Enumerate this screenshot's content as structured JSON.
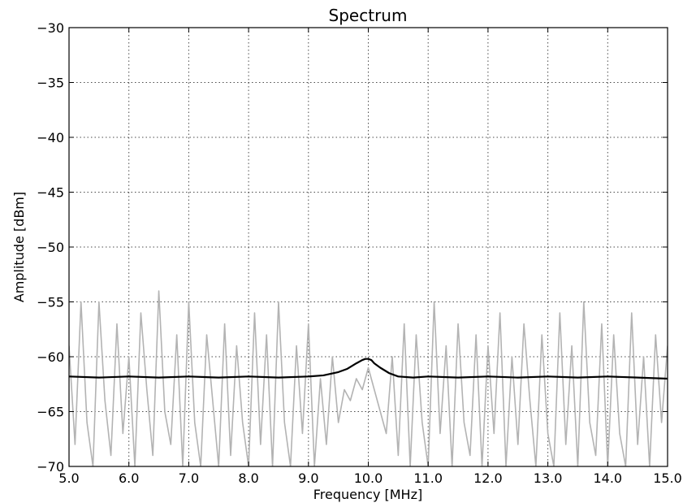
{
  "chart_data": {
    "type": "line",
    "title": "Spectrum",
    "xlabel": "Frequency [MHz]",
    "ylabel": "Amplitude [dBm]",
    "xlim": [
      5.0,
      15.0
    ],
    "ylim": [
      -70,
      -30
    ],
    "x_ticks": [
      5.0,
      6.0,
      7.0,
      8.0,
      9.0,
      10.0,
      11.0,
      12.0,
      13.0,
      14.0,
      15.0
    ],
    "x_tick_labels": [
      "5.0",
      "6.0",
      "7.0",
      "8.0",
      "9.0",
      "10.0",
      "11.0",
      "12.0",
      "13.0",
      "14.0",
      "15.0"
    ],
    "y_ticks": [
      -70,
      -65,
      -60,
      -55,
      -50,
      -45,
      -40,
      -35,
      -30
    ],
    "y_tick_labels": [
      "−70",
      "−65",
      "−60",
      "−55",
      "−50",
      "−45",
      "−40",
      "−35",
      "−30"
    ],
    "grid": true,
    "legend": "none",
    "series": [
      {
        "color": "#b3b3b3",
        "style": "instantaneous noisy spectrum trace",
        "x": [
          5.0,
          5.1,
          5.2,
          5.3,
          5.4,
          5.5,
          5.6,
          5.7,
          5.8,
          5.9,
          6.0,
          6.1,
          6.2,
          6.3,
          6.4,
          6.5,
          6.6,
          6.7,
          6.8,
          6.9,
          7.0,
          7.1,
          7.2,
          7.3,
          7.4,
          7.5,
          7.6,
          7.7,
          7.8,
          7.9,
          8.0,
          8.1,
          8.2,
          8.3,
          8.4,
          8.5,
          8.6,
          8.7,
          8.8,
          8.9,
          9.0,
          9.1,
          9.2,
          9.3,
          9.4,
          9.5,
          9.6,
          9.7,
          9.8,
          9.9,
          10.0,
          10.1,
          10.2,
          10.3,
          10.4,
          10.5,
          10.6,
          10.7,
          10.8,
          10.9,
          11.0,
          11.1,
          11.2,
          11.3,
          11.4,
          11.5,
          11.6,
          11.7,
          11.8,
          11.9,
          12.0,
          12.1,
          12.2,
          12.3,
          12.4,
          12.5,
          12.6,
          12.7,
          12.8,
          12.9,
          13.0,
          13.1,
          13.2,
          13.3,
          13.4,
          13.5,
          13.6,
          13.7,
          13.8,
          13.9,
          14.0,
          14.1,
          14.2,
          14.3,
          14.4,
          14.5,
          14.6,
          14.7,
          14.8,
          14.9,
          15.0
        ],
        "values": [
          -59,
          -68,
          -55,
          -66,
          -70,
          -55,
          -64,
          -69,
          -57,
          -67,
          -60,
          -70,
          -56,
          -63,
          -69,
          -54,
          -65,
          -68,
          -58,
          -70,
          -55,
          -66,
          -70,
          -58,
          -64,
          -70,
          -57,
          -69,
          -59,
          -66,
          -70,
          -56,
          -68,
          -58,
          -70,
          -55,
          -66,
          -70,
          -59,
          -67,
          -57,
          -70,
          -62,
          -68,
          -60,
          -66,
          -63,
          -64,
          -62,
          -63,
          -61,
          -63,
          -65,
          -67,
          -60,
          -69,
          -57,
          -70,
          -58,
          -66,
          -70,
          -55,
          -67,
          -59,
          -70,
          -57,
          -66,
          -69,
          -58,
          -70,
          -59,
          -67,
          -56,
          -70,
          -60,
          -68,
          -57,
          -64,
          -70,
          -58,
          -67,
          -70,
          -56,
          -68,
          -59,
          -70,
          -55,
          -66,
          -69,
          -57,
          -70,
          -58,
          -67,
          -70,
          -56,
          -68,
          -60,
          -70,
          -58,
          -66,
          -59
        ]
      },
      {
        "color": "#000000",
        "style": "averaged spectrum trace",
        "x": [
          5.0,
          5.5,
          6.0,
          6.5,
          7.0,
          7.5,
          8.0,
          8.5,
          9.0,
          9.25,
          9.5,
          9.65,
          9.8,
          9.9,
          9.95,
          10.0,
          10.05,
          10.1,
          10.2,
          10.35,
          10.5,
          10.75,
          11.0,
          11.5,
          12.0,
          12.5,
          13.0,
          13.5,
          14.0,
          14.5,
          15.0
        ],
        "values": [
          -61.8,
          -61.9,
          -61.8,
          -61.9,
          -61.8,
          -61.9,
          -61.8,
          -61.9,
          -61.8,
          -61.7,
          -61.4,
          -61.1,
          -60.6,
          -60.3,
          -60.2,
          -60.2,
          -60.3,
          -60.6,
          -61.0,
          -61.5,
          -61.8,
          -61.9,
          -61.8,
          -61.9,
          -61.8,
          -61.9,
          -61.8,
          -61.9,
          -61.8,
          -61.9,
          -62.0
        ]
      }
    ]
  }
}
